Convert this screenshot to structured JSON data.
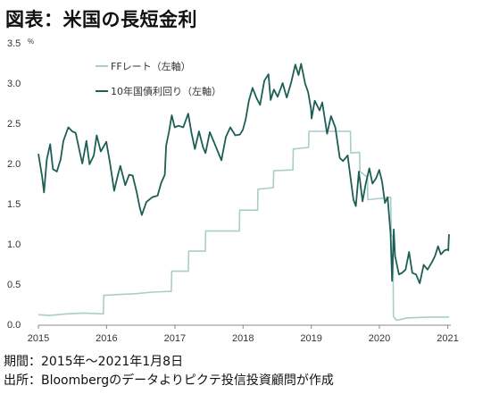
{
  "title": "図表：米国の長短金利",
  "notes": {
    "period": "期間：2015年～2021年1月8日",
    "source": "出所：Bloombergのデータよりピクテ投信投資顧問が作成"
  },
  "chart_data": {
    "type": "line",
    "ylim": [
      0,
      3.5
    ],
    "y_unit": "%",
    "y_ticks": [
      "0.0",
      "0.5",
      "1.0",
      "1.5",
      "2.0",
      "2.5",
      "3.0",
      "3.5"
    ],
    "x_ticks": [
      "2015",
      "2016",
      "2017",
      "2018",
      "2019",
      "2020",
      "2021"
    ],
    "xlim": [
      "2015-01-01",
      "2021-01-08"
    ],
    "grid": false,
    "legend": "top-left",
    "series": [
      {
        "name": "FFレート（左軸）",
        "color": "#a8cec9",
        "points": [
          [
            "2015-01-01",
            0.12
          ],
          [
            "2015-03-01",
            0.11
          ],
          [
            "2015-06-01",
            0.13
          ],
          [
            "2015-09-01",
            0.14
          ],
          [
            "2015-12-15",
            0.13
          ],
          [
            "2015-12-17",
            0.36
          ],
          [
            "2016-03-01",
            0.37
          ],
          [
            "2016-06-01",
            0.38
          ],
          [
            "2016-09-01",
            0.4
          ],
          [
            "2016-12-13",
            0.41
          ],
          [
            "2016-12-15",
            0.66
          ],
          [
            "2017-03-14",
            0.66
          ],
          [
            "2017-03-16",
            0.91
          ],
          [
            "2017-06-13",
            0.91
          ],
          [
            "2017-06-15",
            1.16
          ],
          [
            "2017-12-12",
            1.16
          ],
          [
            "2017-12-14",
            1.42
          ],
          [
            "2018-03-20",
            1.42
          ],
          [
            "2018-03-22",
            1.68
          ],
          [
            "2018-06-12",
            1.7
          ],
          [
            "2018-06-14",
            1.91
          ],
          [
            "2018-09-25",
            1.92
          ],
          [
            "2018-09-27",
            2.18
          ],
          [
            "2018-12-18",
            2.2
          ],
          [
            "2018-12-20",
            2.4
          ],
          [
            "2019-07-30",
            2.4
          ],
          [
            "2019-08-01",
            2.13
          ],
          [
            "2019-09-17",
            2.14
          ],
          [
            "2019-09-19",
            1.9
          ],
          [
            "2019-10-29",
            1.83
          ],
          [
            "2019-10-31",
            1.55
          ],
          [
            "2020-03-02",
            1.58
          ],
          [
            "2020-03-04",
            1.1
          ],
          [
            "2020-03-14",
            1.1
          ],
          [
            "2020-03-16",
            0.1
          ],
          [
            "2020-04-01",
            0.05
          ],
          [
            "2020-06-01",
            0.08
          ],
          [
            "2020-10-01",
            0.09
          ],
          [
            "2021-01-08",
            0.09
          ]
        ]
      },
      {
        "name": "10年国債利回り（左軸）",
        "color": "#1d5e55",
        "points": [
          [
            "2015-01-01",
            2.12
          ],
          [
            "2015-01-20",
            1.85
          ],
          [
            "2015-01-31",
            1.64
          ],
          [
            "2015-02-15",
            2.05
          ],
          [
            "2015-03-05",
            2.24
          ],
          [
            "2015-03-20",
            1.93
          ],
          [
            "2015-04-10",
            1.9
          ],
          [
            "2015-04-30",
            2.05
          ],
          [
            "2015-05-15",
            2.28
          ],
          [
            "2015-06-10",
            2.45
          ],
          [
            "2015-07-01",
            2.4
          ],
          [
            "2015-07-20",
            2.38
          ],
          [
            "2015-08-10",
            2.15
          ],
          [
            "2015-08-24",
            2.0
          ],
          [
            "2015-09-15",
            2.28
          ],
          [
            "2015-10-02",
            1.99
          ],
          [
            "2015-10-25",
            2.1
          ],
          [
            "2015-11-09",
            2.35
          ],
          [
            "2015-12-01",
            2.15
          ],
          [
            "2015-12-31",
            2.27
          ],
          [
            "2016-01-20",
            2.0
          ],
          [
            "2016-02-11",
            1.66
          ],
          [
            "2016-03-01",
            1.85
          ],
          [
            "2016-03-15",
            1.97
          ],
          [
            "2016-04-10",
            1.73
          ],
          [
            "2016-05-01",
            1.86
          ],
          [
            "2016-05-20",
            1.85
          ],
          [
            "2016-06-10",
            1.65
          ],
          [
            "2016-06-27",
            1.45
          ],
          [
            "2016-07-08",
            1.36
          ],
          [
            "2016-08-01",
            1.52
          ],
          [
            "2016-09-01",
            1.58
          ],
          [
            "2016-09-30",
            1.6
          ],
          [
            "2016-10-20",
            1.76
          ],
          [
            "2016-11-08",
            1.86
          ],
          [
            "2016-11-15",
            2.22
          ],
          [
            "2016-12-01",
            2.4
          ],
          [
            "2016-12-15",
            2.6
          ],
          [
            "2016-12-31",
            2.45
          ],
          [
            "2017-01-20",
            2.47
          ],
          [
            "2017-02-15",
            2.45
          ],
          [
            "2017-03-13",
            2.62
          ],
          [
            "2017-03-31",
            2.38
          ],
          [
            "2017-04-18",
            2.18
          ],
          [
            "2017-05-10",
            2.4
          ],
          [
            "2017-06-01",
            2.2
          ],
          [
            "2017-06-14",
            2.13
          ],
          [
            "2017-07-07",
            2.39
          ],
          [
            "2017-08-01",
            2.25
          ],
          [
            "2017-09-07",
            2.04
          ],
          [
            "2017-10-01",
            2.33
          ],
          [
            "2017-10-25",
            2.45
          ],
          [
            "2017-11-20",
            2.35
          ],
          [
            "2017-12-15",
            2.36
          ],
          [
            "2017-12-31",
            2.42
          ],
          [
            "2018-01-15",
            2.55
          ],
          [
            "2018-02-01",
            2.78
          ],
          [
            "2018-02-21",
            2.94
          ],
          [
            "2018-03-15",
            2.81
          ],
          [
            "2018-04-02",
            2.73
          ],
          [
            "2018-04-25",
            3.03
          ],
          [
            "2018-05-17",
            3.11
          ],
          [
            "2018-05-29",
            2.79
          ],
          [
            "2018-06-15",
            2.92
          ],
          [
            "2018-07-05",
            2.83
          ],
          [
            "2018-08-01",
            3.0
          ],
          [
            "2018-08-23",
            2.82
          ],
          [
            "2018-09-15",
            3.0
          ],
          [
            "2018-10-08",
            3.23
          ],
          [
            "2018-10-25",
            3.1
          ],
          [
            "2018-11-08",
            3.24
          ],
          [
            "2018-11-30",
            2.99
          ],
          [
            "2018-12-15",
            2.89
          ],
          [
            "2018-12-31",
            2.68
          ],
          [
            "2019-01-03",
            2.56
          ],
          [
            "2019-01-20",
            2.78
          ],
          [
            "2019-02-15",
            2.66
          ],
          [
            "2019-03-01",
            2.76
          ],
          [
            "2019-03-27",
            2.37
          ],
          [
            "2019-04-17",
            2.59
          ],
          [
            "2019-05-10",
            2.45
          ],
          [
            "2019-06-03",
            2.07
          ],
          [
            "2019-06-20",
            2.03
          ],
          [
            "2019-07-15",
            2.1
          ],
          [
            "2019-08-15",
            1.55
          ],
          [
            "2019-08-28",
            1.47
          ],
          [
            "2019-09-13",
            1.9
          ],
          [
            "2019-10-03",
            1.53
          ],
          [
            "2019-10-20",
            1.75
          ],
          [
            "2019-11-08",
            1.94
          ],
          [
            "2019-11-25",
            1.75
          ],
          [
            "2019-12-15",
            1.82
          ],
          [
            "2019-12-31",
            1.92
          ],
          [
            "2020-01-15",
            1.78
          ],
          [
            "2020-01-31",
            1.51
          ],
          [
            "2020-02-14",
            1.58
          ],
          [
            "2020-03-01",
            1.13
          ],
          [
            "2020-03-09",
            0.54
          ],
          [
            "2020-03-18",
            1.18
          ],
          [
            "2020-03-25",
            0.85
          ],
          [
            "2020-04-15",
            0.62
          ],
          [
            "2020-05-01",
            0.64
          ],
          [
            "2020-05-20",
            0.68
          ],
          [
            "2020-06-08",
            0.9
          ],
          [
            "2020-06-25",
            0.64
          ],
          [
            "2020-07-15",
            0.62
          ],
          [
            "2020-08-04",
            0.51
          ],
          [
            "2020-08-25",
            0.74
          ],
          [
            "2020-09-15",
            0.68
          ],
          [
            "2020-10-10",
            0.78
          ],
          [
            "2020-10-25",
            0.85
          ],
          [
            "2020-11-10",
            0.97
          ],
          [
            "2020-11-25",
            0.87
          ],
          [
            "2020-12-15",
            0.92
          ],
          [
            "2020-12-31",
            0.93
          ],
          [
            "2021-01-04",
            0.92
          ],
          [
            "2021-01-06",
            1.04
          ],
          [
            "2021-01-08",
            1.12
          ]
        ]
      }
    ]
  }
}
